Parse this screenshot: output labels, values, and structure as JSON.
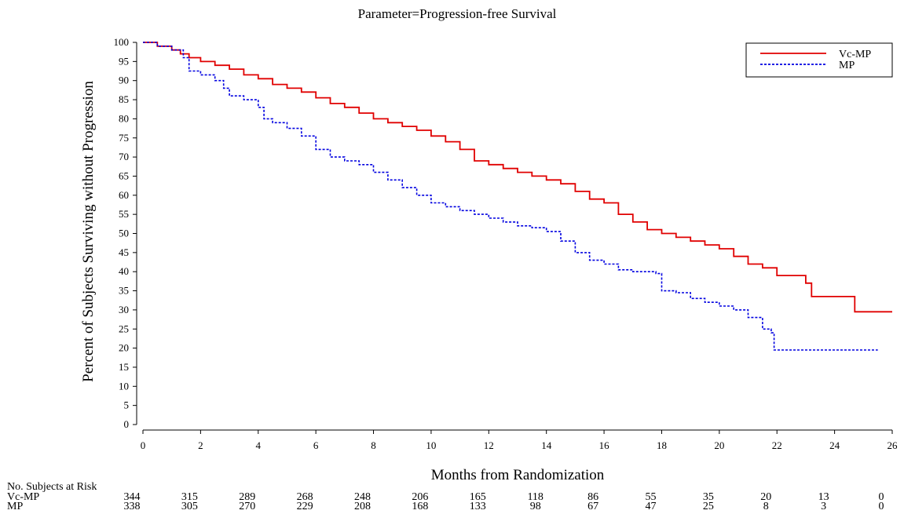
{
  "chart_data": {
    "type": "line",
    "title": "Parameter=Progression-free Survival",
    "xlabel": "Months from Randomization",
    "ylabel": "Percent of Subjects Surviving without Progression",
    "xlim": [
      0,
      26
    ],
    "ylim": [
      0,
      100
    ],
    "x_ticks": [
      0,
      2,
      4,
      6,
      8,
      10,
      12,
      14,
      16,
      18,
      20,
      22,
      24,
      26
    ],
    "y_ticks": [
      0,
      5,
      10,
      15,
      20,
      25,
      30,
      35,
      40,
      45,
      50,
      55,
      60,
      65,
      70,
      75,
      80,
      85,
      90,
      95,
      100
    ],
    "grid": false,
    "legend_position": "top-right",
    "series": [
      {
        "name": "Vc-MP",
        "color": "#e00000",
        "style": "solid",
        "points": [
          [
            0,
            100
          ],
          [
            0.5,
            99
          ],
          [
            1,
            98
          ],
          [
            1.3,
            97
          ],
          [
            1.6,
            96
          ],
          [
            2,
            95
          ],
          [
            2.5,
            94
          ],
          [
            3,
            93
          ],
          [
            3.5,
            91.5
          ],
          [
            4,
            90.5
          ],
          [
            4.5,
            89
          ],
          [
            5,
            88
          ],
          [
            5.5,
            87
          ],
          [
            6,
            85.5
          ],
          [
            6.5,
            84
          ],
          [
            7,
            83
          ],
          [
            7.5,
            81.5
          ],
          [
            8,
            80
          ],
          [
            8.5,
            79
          ],
          [
            9,
            78
          ],
          [
            9.5,
            77
          ],
          [
            10,
            75.5
          ],
          [
            10.5,
            74
          ],
          [
            11,
            72
          ],
          [
            11.5,
            69
          ],
          [
            12,
            68
          ],
          [
            12.5,
            67
          ],
          [
            13,
            66
          ],
          [
            13.5,
            65
          ],
          [
            14,
            64
          ],
          [
            14.5,
            63
          ],
          [
            15,
            61
          ],
          [
            15.5,
            59
          ],
          [
            16,
            58
          ],
          [
            16.5,
            55
          ],
          [
            17,
            53
          ],
          [
            17.5,
            51
          ],
          [
            18,
            50
          ],
          [
            18.5,
            49
          ],
          [
            19,
            48
          ],
          [
            19.5,
            47
          ],
          [
            20,
            46
          ],
          [
            20.5,
            44
          ],
          [
            21,
            42
          ],
          [
            21.5,
            41
          ],
          [
            22,
            39
          ],
          [
            23,
            37
          ],
          [
            23.2,
            33.5
          ],
          [
            24,
            33.5
          ],
          [
            24.7,
            29.5
          ],
          [
            26,
            29.5
          ]
        ]
      },
      {
        "name": "MP",
        "color": "#0000e0",
        "style": "dashed",
        "points": [
          [
            0,
            100
          ],
          [
            0.5,
            99
          ],
          [
            1,
            98
          ],
          [
            1.4,
            96
          ],
          [
            1.6,
            92.5
          ],
          [
            2,
            91.5
          ],
          [
            2.5,
            90
          ],
          [
            2.8,
            88
          ],
          [
            3,
            86
          ],
          [
            3.5,
            85
          ],
          [
            4,
            83
          ],
          [
            4.2,
            80
          ],
          [
            4.5,
            79
          ],
          [
            5,
            77.5
          ],
          [
            5.5,
            75.5
          ],
          [
            6,
            72
          ],
          [
            6.5,
            70
          ],
          [
            7,
            69
          ],
          [
            7.5,
            68
          ],
          [
            8,
            66
          ],
          [
            8.5,
            64
          ],
          [
            9,
            62
          ],
          [
            9.5,
            60
          ],
          [
            10,
            58
          ],
          [
            10.5,
            57
          ],
          [
            11,
            56
          ],
          [
            11.5,
            55
          ],
          [
            12,
            54
          ],
          [
            12.5,
            53
          ],
          [
            13,
            52
          ],
          [
            13.5,
            51.5
          ],
          [
            14,
            50.5
          ],
          [
            14.5,
            48
          ],
          [
            15,
            45
          ],
          [
            15.5,
            43
          ],
          [
            16,
            42
          ],
          [
            16.5,
            40.5
          ],
          [
            17,
            40
          ],
          [
            17.8,
            39.5
          ],
          [
            18,
            35
          ],
          [
            18.5,
            34.5
          ],
          [
            19,
            33
          ],
          [
            19.5,
            32
          ],
          [
            20,
            31
          ],
          [
            20.5,
            30
          ],
          [
            21,
            28
          ],
          [
            21.5,
            25
          ],
          [
            21.8,
            24
          ],
          [
            21.9,
            19.5
          ],
          [
            25.5,
            19.5
          ]
        ]
      }
    ]
  },
  "risk_table": {
    "header": "No. Subjects at Risk",
    "rows": [
      {
        "label": "Vc-MP",
        "values": [
          "344",
          "315",
          "289",
          "268",
          "248",
          "206",
          "165",
          "118",
          "86",
          "55",
          "35",
          "20",
          "13",
          "0"
        ]
      },
      {
        "label": "MP",
        "values": [
          "338",
          "305",
          "270",
          "229",
          "208",
          "168",
          "133",
          "98",
          "67",
          "47",
          "25",
          "8",
          "3",
          "0"
        ]
      }
    ]
  }
}
